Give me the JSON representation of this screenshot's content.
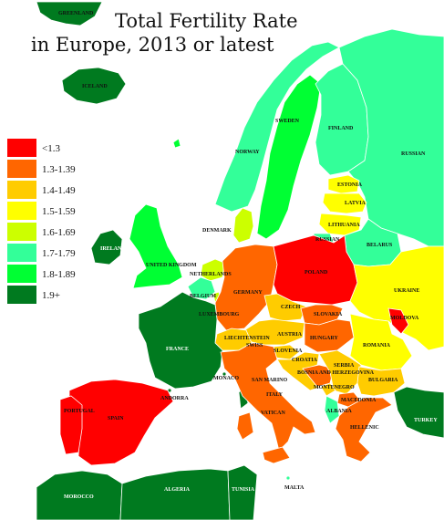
{
  "title_line1": "Total Fertility Rate",
  "title_line2": "in Europe, 2013 or latest",
  "legend": [
    {
      "label": "<1.3",
      "color": "#ff0000"
    },
    {
      "label": "1.3-1.39",
      "color": "#ff6600"
    },
    {
      "label": "1.4-1.49",
      "color": "#ffcc00"
    },
    {
      "label": "1.5-1.59",
      "color": "#ffff00"
    },
    {
      "label": "1.6-1.69",
      "color": "#ccff00"
    },
    {
      "label": "1.7-1.79",
      "color": "#33ff99"
    },
    {
      "label": "1.8-1.89",
      "color": "#00ff33"
    },
    {
      "label": "1.9+",
      "color": "#007a1f"
    }
  ],
  "countries": {
    "greenland": "GREENLAND",
    "iceland": "ICELAND",
    "norway": "NORWAY",
    "sweden": "SWEDEN",
    "finland": "FINLAND",
    "russian": "RUSSIAN",
    "estonia": "ESTONIA",
    "latvia": "LATVIA",
    "lithuania": "LITHUANIA",
    "kaliningrad": "RUSSIAN",
    "belarus": "BELARUS",
    "denmark": "DENMARK",
    "ireland": "IRELAND",
    "uk": "UNITED KINGDOM",
    "netherlands": "NETHERLANDS",
    "belgium": "BELGIUM",
    "luxembourg": "LUXEMBOURG",
    "germany": "GERMANY",
    "poland": "POLAND",
    "ukraine": "UKRAINE",
    "moldova": "MOLDOVA",
    "czech": "CZECH",
    "slovakia": "SLOVAKIA",
    "austria": "AUSTRIA",
    "hungary": "HUNGARY",
    "romania": "ROMANIA",
    "liechtenstein": "LIECHTENSTEIN",
    "swiss": "SWISS",
    "slovenia": "SLOVENIA",
    "croatia": "CROATIA",
    "serbia": "SERBIA",
    "bosnia": "BOSNIA AND HERZEGOVINA",
    "montenegro": "MONTENEGRO",
    "macedonia": "MACEDONIA",
    "albania": "ALBANIA",
    "bulgaria": "BULGARIA",
    "greece": "HELLENIC",
    "turkey": "TURKEY",
    "france": "FRANCE",
    "monaco": "MONACO",
    "andorra": "ANDORRA",
    "spain": "SPAIN",
    "portugal": "PORTUGAL",
    "italy": "ITALY",
    "san_marino": "SAN MARINO",
    "vatican": "VATICAN",
    "malta": "MALTA",
    "morocco": "MOROCCO",
    "algeria": "ALGERIA",
    "tunisia": "TUNISIA"
  }
}
